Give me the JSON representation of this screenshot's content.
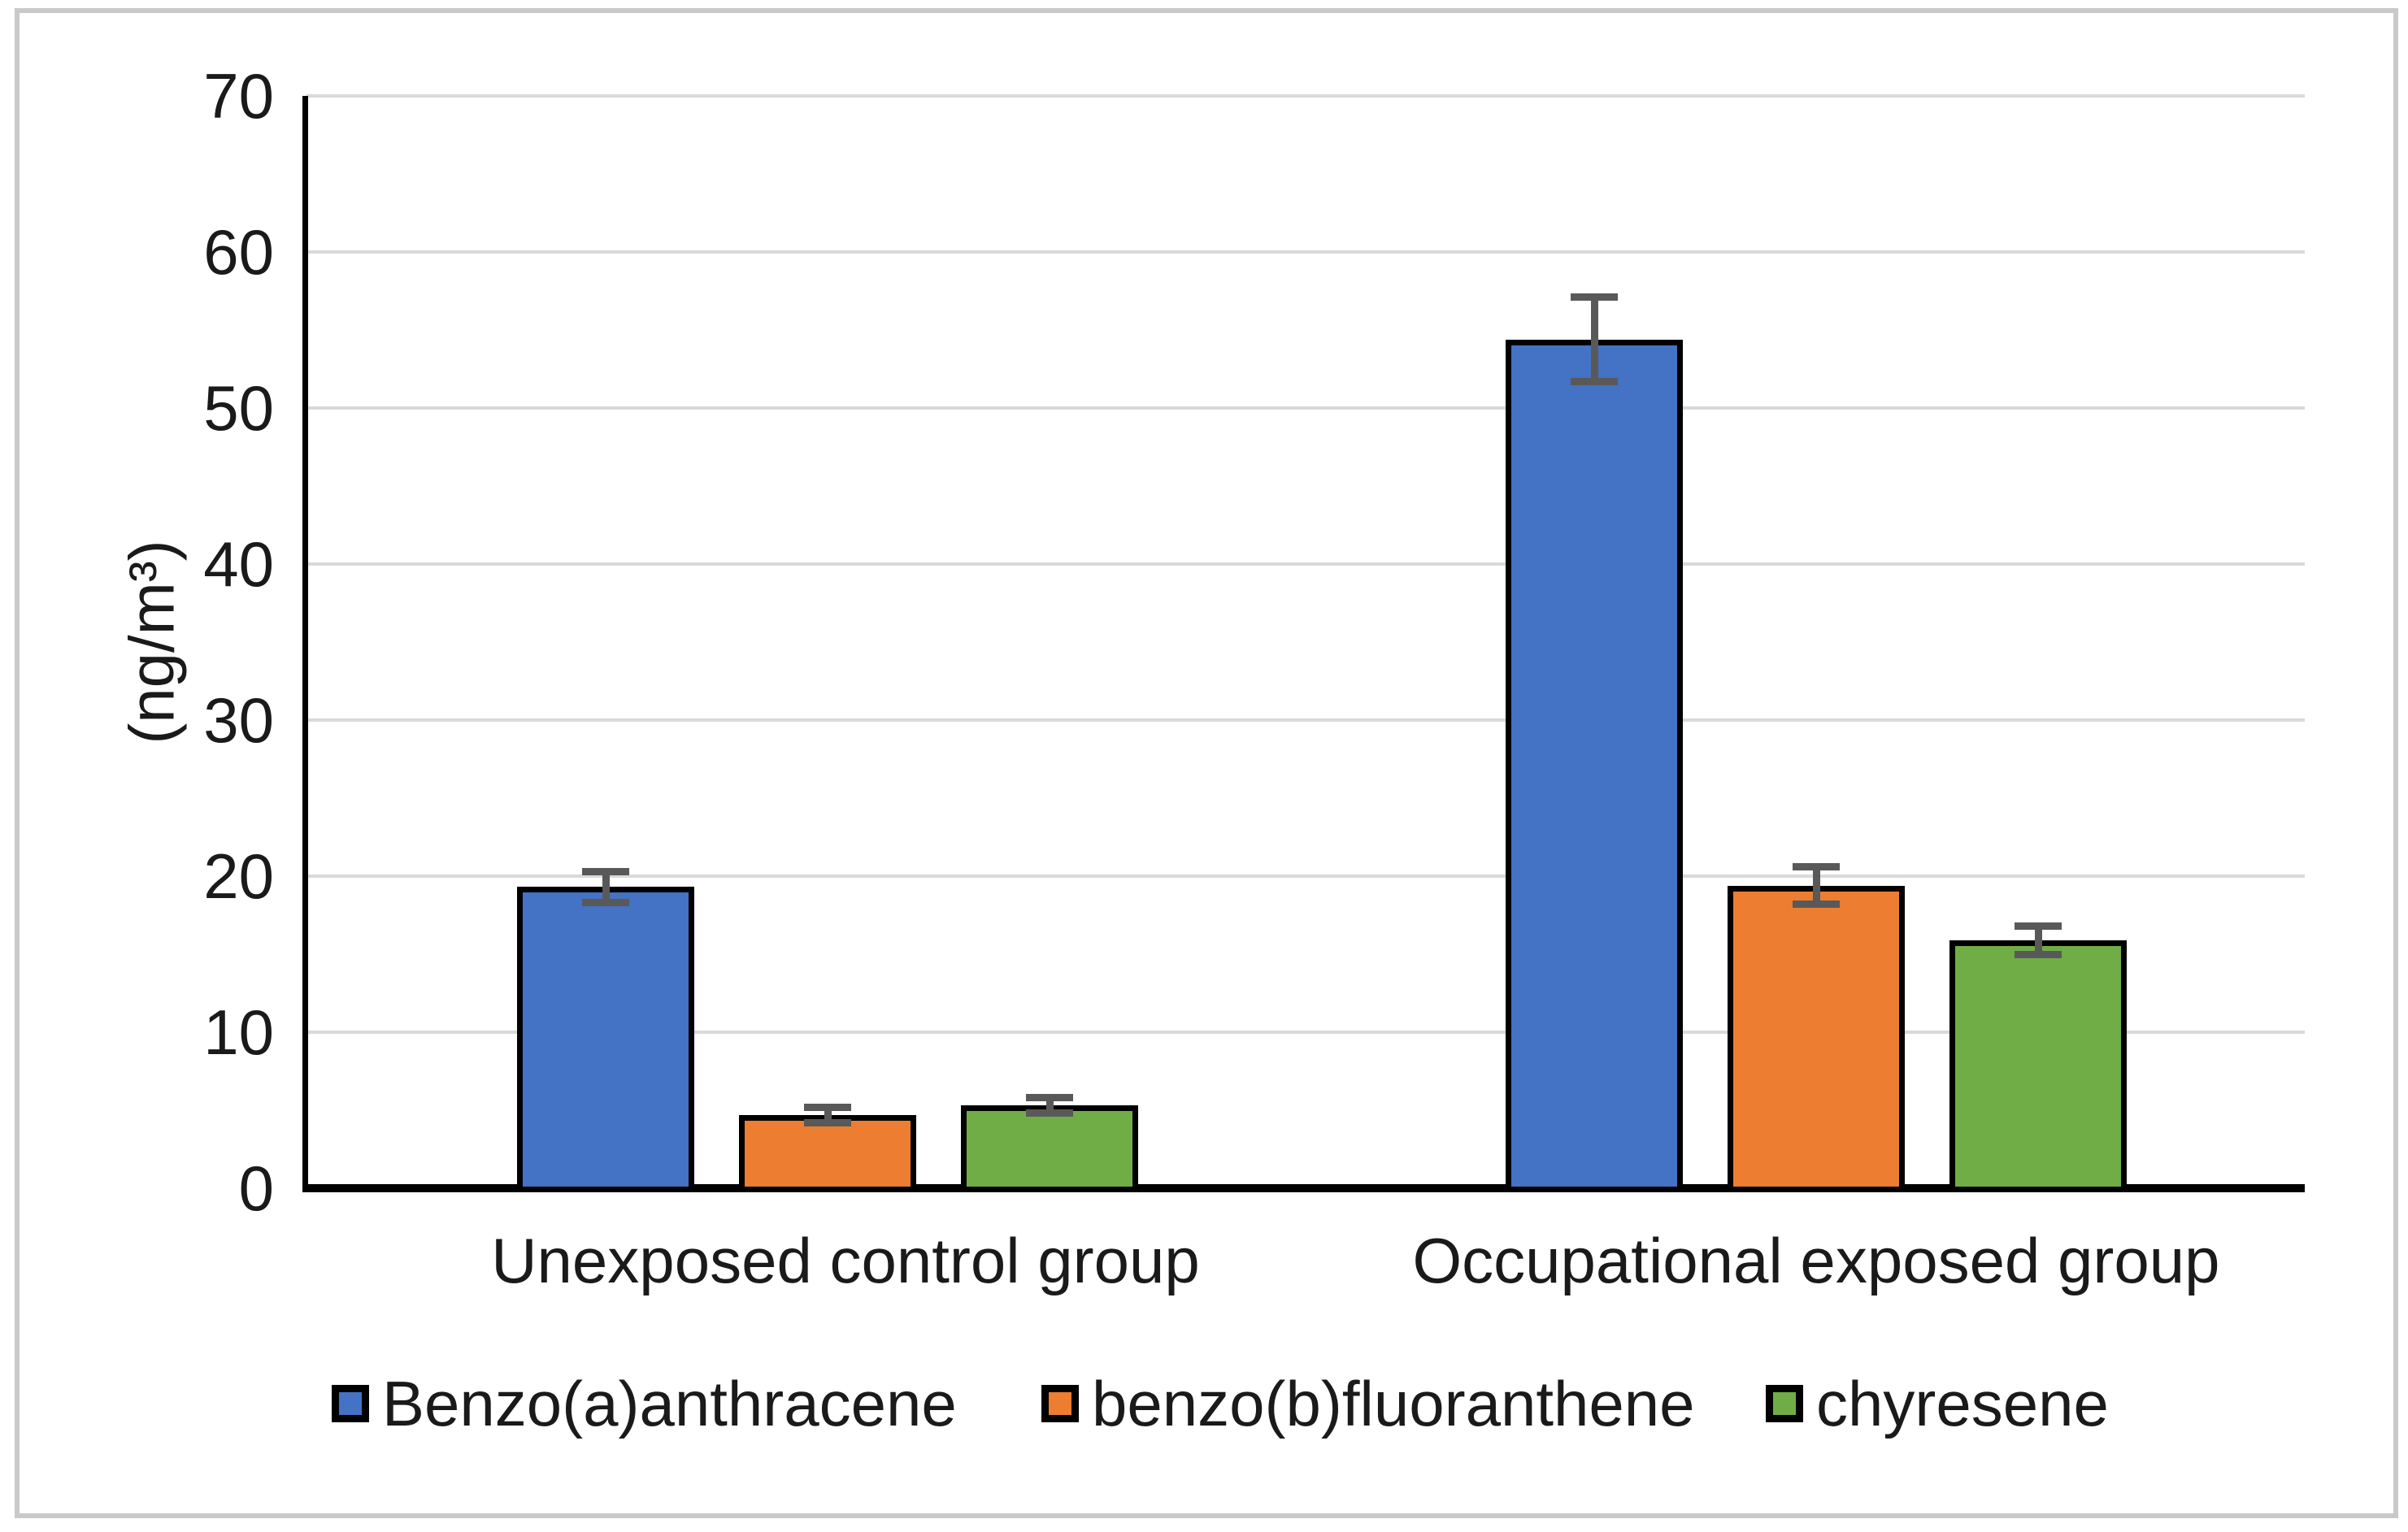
{
  "chart_data": {
    "type": "bar",
    "title": "",
    "xlabel": "",
    "ylabel": "(ng/m³)",
    "ylim": [
      0,
      70
    ],
    "ytick_step": 10,
    "yticks": [
      0,
      10,
      20,
      30,
      40,
      50,
      60,
      70
    ],
    "grid": true,
    "legend_position": "bottom",
    "categories": [
      "Unexposed control group",
      "Occupational exposed group"
    ],
    "series": [
      {
        "name": "Benzo(a)anthracene",
        "color": "#4472C4",
        "values": [
          19.3,
          54.4
        ],
        "errors": [
          1.0,
          2.7
        ]
      },
      {
        "name": "benzo(b)fluoranthene",
        "color": "#ED7D31",
        "values": [
          4.7,
          19.4
        ],
        "errors": [
          0.5,
          1.2
        ]
      },
      {
        "name": "chyresene",
        "color": "#70AD47",
        "values": [
          5.3,
          15.9
        ],
        "errors": [
          0.5,
          0.9
        ]
      }
    ],
    "colors": {
      "error_bar": "#595959",
      "bar_border": "#000000",
      "gridline": "#D9D9D9",
      "axis": "#000000",
      "text": "#1a1a1a",
      "frame_border": "#C9C9C9",
      "background": "#FFFFFF"
    }
  }
}
